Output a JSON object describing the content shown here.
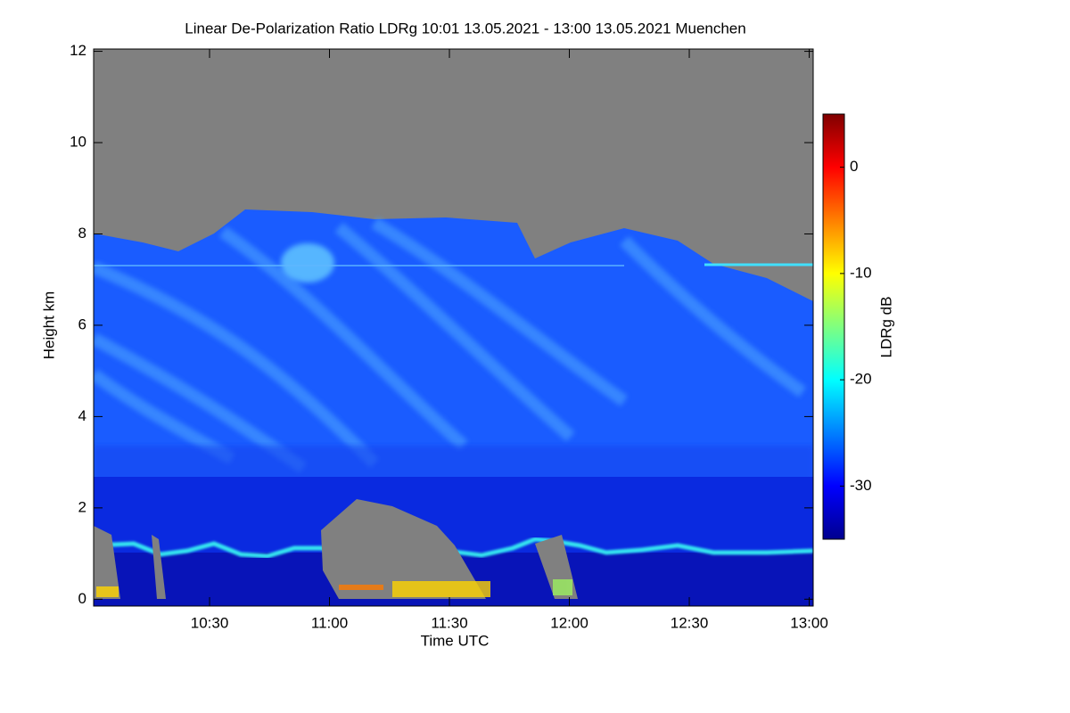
{
  "chart_data": {
    "type": "heatmap",
    "title": "Linear De-Polarization Ratio LDRg   10:01 13.05.2021 - 13:00 13.05.2021 Muenchen",
    "x_label": "Time UTC",
    "y_label": "Height km",
    "xlim": [
      601,
      781
    ],
    "xticks": [
      {
        "value": 630,
        "label": "10:30"
      },
      {
        "value": 660,
        "label": "11:00"
      },
      {
        "value": 690,
        "label": "11:30"
      },
      {
        "value": 720,
        "label": "12:00"
      },
      {
        "value": 750,
        "label": "12:30"
      },
      {
        "value": 780,
        "label": "13:00"
      }
    ],
    "ylim": [
      -0.15,
      12.05
    ],
    "yticks": [
      0,
      2,
      4,
      6,
      8,
      10,
      12
    ],
    "colorbar": {
      "label": "LDRg dB",
      "clim": [
        -35,
        5
      ],
      "ticks": [
        -30,
        -20,
        -10,
        0
      ],
      "colormap": "jet"
    }
  }
}
